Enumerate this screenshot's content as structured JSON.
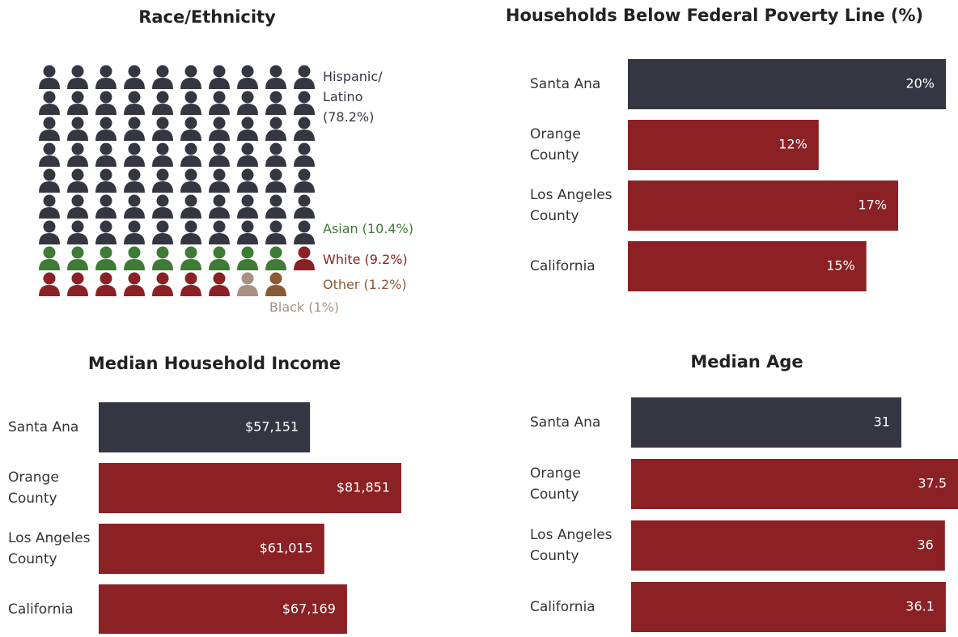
{
  "chart_data": [
    {
      "type": "pictograph",
      "title": "Race/Ethnicity",
      "categories": [
        "Hispanic/ Latino",
        "Asian",
        "White",
        "Black",
        "Other"
      ],
      "values": [
        78.2,
        10.4,
        9.2,
        1,
        1.2
      ],
      "value_labels": [
        "(78.2%)",
        "(10.4%)",
        "(9.2%)",
        "(1%)",
        "(1.2%)"
      ],
      "colors": [
        "#343741",
        "#3e7b35",
        "#8b2125",
        "#a89182",
        "#8a5a33"
      ]
    },
    {
      "type": "bar",
      "title": "Households Below Federal Poverty Line (%)",
      "categories": [
        "Santa Ana",
        "Orange County",
        "Los Angeles County",
        "California"
      ],
      "values": [
        20,
        12,
        17,
        15
      ],
      "value_labels": [
        "20%",
        "12%",
        "17%",
        "15%"
      ],
      "colors": [
        "#343741",
        "#8b2125",
        "#8b2125",
        "#8b2125"
      ]
    },
    {
      "type": "bar",
      "title": "Median Household Income",
      "categories": [
        "Santa Ana",
        "Orange County",
        "Los Angeles County",
        "California"
      ],
      "values": [
        57151,
        81851,
        61015,
        67169
      ],
      "value_labels": [
        "$57,151",
        "$81,851",
        "$61,015",
        "$67,169"
      ],
      "colors": [
        "#343741",
        "#8b2125",
        "#8b2125",
        "#8b2125"
      ]
    },
    {
      "type": "bar",
      "title": "Median Age",
      "categories": [
        "Santa Ana",
        "Orange County",
        "Los Angeles County",
        "California"
      ],
      "values": [
        31,
        37.5,
        36,
        36.1
      ],
      "colors": [
        "#343741",
        "#8b2125",
        "#8b2125",
        "#8b2125"
      ]
    }
  ]
}
